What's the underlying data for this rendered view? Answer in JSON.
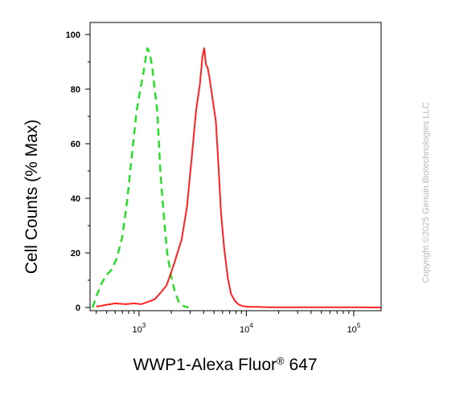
{
  "chart_data": {
    "type": "line",
    "ylabel": "Cell Counts (% Max)",
    "xlabel": {
      "main": "WWP1-Alexa Fluor",
      "mark": "®",
      "suffix": " 647"
    },
    "x_scale": "log",
    "xlim": [
      350,
      180000
    ],
    "ylim": [
      0,
      100
    ],
    "yticks": [
      "0",
      "20",
      "40",
      "60",
      "80",
      "100"
    ],
    "xticks": [
      {
        "base": "10",
        "exp": "3",
        "value": 1000
      },
      {
        "base": "10",
        "exp": "4",
        "value": 10000
      },
      {
        "base": "10",
        "exp": "5",
        "value": 100000
      }
    ],
    "grid": false,
    "series": [
      {
        "color": "#22dd22",
        "style": "dashed",
        "x": [
          370,
          400,
          450,
          500,
          560,
          620,
          700,
          780,
          870,
          950,
          1030,
          1100,
          1150,
          1200,
          1260,
          1330,
          1400,
          1480,
          1580,
          1700,
          1830,
          1980,
          2150,
          2350,
          2600,
          2900
        ],
        "y": [
          0,
          4,
          9,
          12,
          14,
          18,
          26,
          40,
          58,
          72,
          80,
          86,
          91,
          95,
          93,
          88,
          80,
          72,
          50,
          34,
          20,
          12,
          6,
          2,
          0.5,
          0
        ]
      },
      {
        "color": "#ff2222",
        "style": "solid",
        "x": [
          400,
          500,
          600,
          750,
          900,
          1050,
          1200,
          1400,
          1600,
          1800,
          2000,
          2200,
          2500,
          2800,
          3100,
          3400,
          3700,
          3900,
          4050,
          4200,
          4350,
          4500,
          4700,
          4950,
          5200,
          5500,
          5800,
          6200,
          6700,
          7200,
          7800,
          8500,
          9300,
          10200,
          11500,
          13000,
          16000,
          30000,
          60000,
          100000,
          180000
        ],
        "y": [
          0.3,
          1,
          1.5,
          1.2,
          1.5,
          1.2,
          2,
          3,
          5.5,
          8,
          13,
          18,
          25,
          37,
          55,
          72,
          82,
          92,
          95,
          89,
          88,
          85,
          80,
          74,
          68,
          52,
          35,
          22,
          11,
          5,
          2.5,
          1,
          0.5,
          0.3,
          0.2,
          0.2,
          0.1,
          0.1,
          0.1,
          0.1,
          0
        ]
      }
    ]
  },
  "watermark": "Copyright ©2025 Genuin Biotechnologies LLC"
}
